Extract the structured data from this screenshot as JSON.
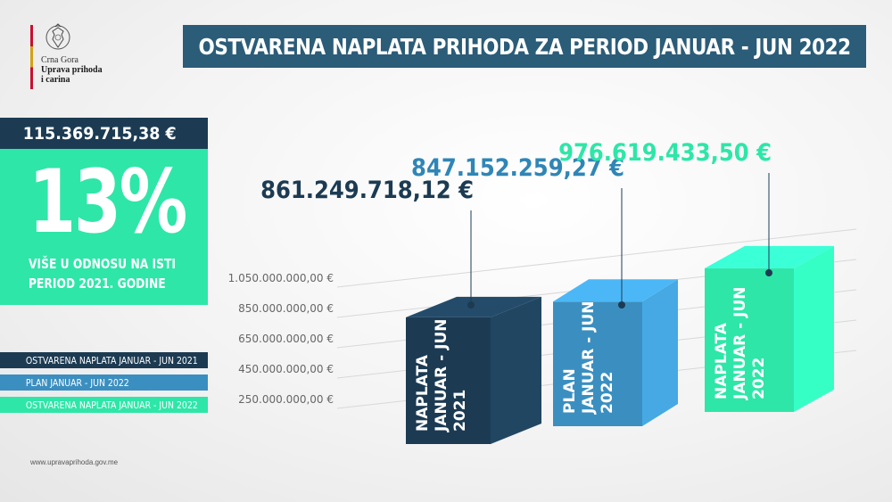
{
  "logo": {
    "line1": "Crna Gora",
    "line2": "Uprava prihoda",
    "line3": "i carina",
    "crest_icon": "coat-of-arms-icon"
  },
  "title": "OSTVARENA NAPLATA PRIHODA ZA PERIOD JANUAR - JUN 2022",
  "summary": {
    "total": "115.369.715,38 €",
    "percent": "13%",
    "description_line1": "VIŠE U ODNOSU NA ISTI",
    "description_line2": "PERIOD 2021. GODINE"
  },
  "legend": [
    {
      "label": "OSTVARENA NAPLATA JANUAR - JUN 2021",
      "color": "#1c3b53"
    },
    {
      "label": "PLAN JANUAR - JUN 2022",
      "color": "#3b8fc0"
    },
    {
      "label": "OSTVARENA NAPLATA JANUAR - JUN 2022",
      "color": "#2ee6a8"
    }
  ],
  "footer_url": "www.upravaprihoda.gov.me",
  "chart_data": {
    "type": "bar",
    "y_ticks": [
      "1.050.000.000,00 €",
      "850.000.000,00 €",
      "650.000.000,00 €",
      "450.000.000,00 €",
      "250.000.000,00 €"
    ],
    "y_tick_values": [
      1050000000,
      850000000,
      650000000,
      450000000,
      250000000
    ],
    "bars": [
      {
        "label_lines": [
          "NAPLATA",
          "JANUAR - JUN",
          "2021"
        ],
        "value": 861249718.12,
        "value_label": "861.249.718,12 €",
        "color": "#1c3b53",
        "label_color": "#1c3b53"
      },
      {
        "label_lines": [
          "PLAN",
          "JANUAR - JUN",
          "2022"
        ],
        "value": 847152259.27,
        "value_label": "847.152.259,27 €",
        "color": "#3b8fc0",
        "label_color": "#2f86b6"
      },
      {
        "label_lines": [
          "NAPLATA",
          "JANUAR - JUN",
          "2022"
        ],
        "value": 976619433.5,
        "value_label": "976.619.433,50 €",
        "color": "#2ee6a8",
        "label_color": "#2ee6a8"
      }
    ]
  }
}
